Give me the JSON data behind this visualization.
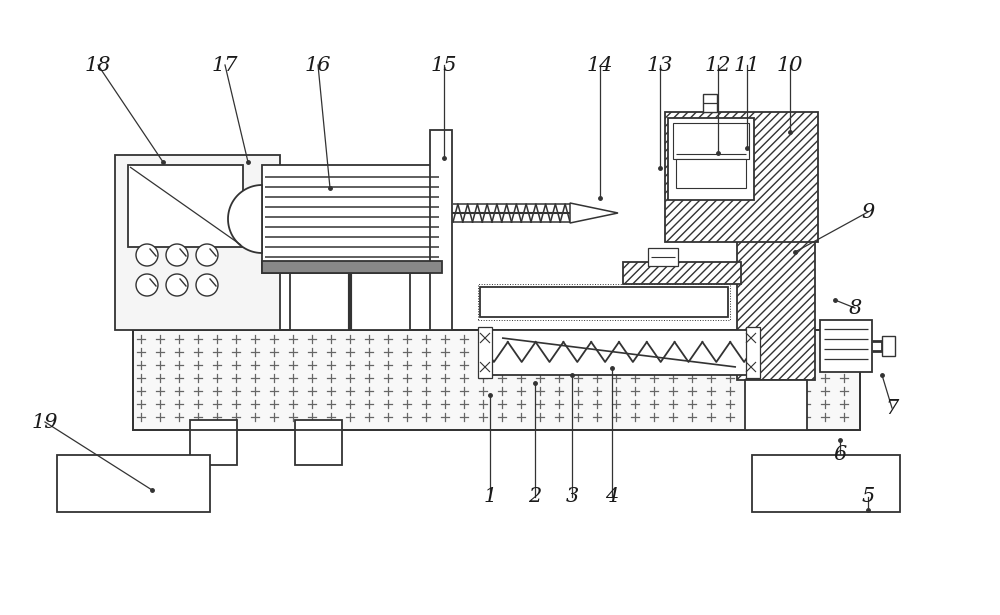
{
  "bg_color": "#ffffff",
  "lc": "#333333",
  "lw": 1.3,
  "label_fontsize": 15,
  "label_color": "#1a1a1a",
  "label_data": [
    [
      "1",
      490,
      395,
      490,
      497
    ],
    [
      "2",
      535,
      383,
      535,
      497
    ],
    [
      "3",
      572,
      375,
      572,
      497
    ],
    [
      "4",
      612,
      368,
      612,
      497
    ],
    [
      "5",
      868,
      510,
      868,
      497
    ],
    [
      "6",
      840,
      440,
      840,
      454
    ],
    [
      "7",
      882,
      375,
      892,
      408
    ],
    [
      "8",
      835,
      300,
      855,
      308
    ],
    [
      "9",
      795,
      252,
      868,
      212
    ],
    [
      "10",
      790,
      132,
      790,
      65
    ],
    [
      "11",
      747,
      148,
      747,
      65
    ],
    [
      "12",
      718,
      153,
      718,
      65
    ],
    [
      "13",
      660,
      168,
      660,
      65
    ],
    [
      "14",
      600,
      198,
      600,
      65
    ],
    [
      "15",
      444,
      158,
      444,
      65
    ],
    [
      "16",
      330,
      188,
      318,
      65
    ],
    [
      "17",
      248,
      162,
      225,
      65
    ],
    [
      "18",
      163,
      162,
      98,
      65
    ],
    [
      "19",
      152,
      490,
      45,
      422
    ]
  ]
}
